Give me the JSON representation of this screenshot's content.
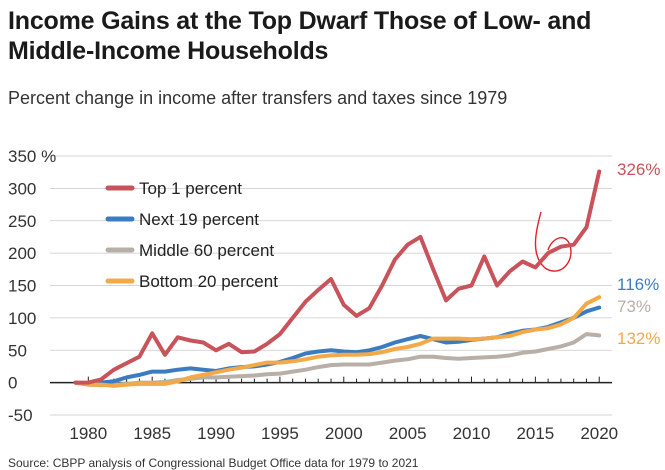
{
  "title": "Income Gains at the Top Dwarf Those of Low- and Middle-Income Households",
  "subtitle": "Percent change in income after transfers and taxes since 1979",
  "source": "Source: CBPP analysis of Congressional Budget Office data for 1979 to 2021",
  "chart_data": {
    "type": "line",
    "xlim": [
      1977,
      2021
    ],
    "ylim": [
      -50,
      350
    ],
    "yticks": [
      -50,
      0,
      50,
      100,
      150,
      200,
      250,
      300,
      350
    ],
    "ytick_labels": [
      "-50",
      "0",
      "50",
      "100",
      "150",
      "200",
      "250",
      "300",
      "350 %"
    ],
    "xticks": [
      1980,
      1985,
      1990,
      1995,
      2000,
      2005,
      2010,
      2015,
      2020
    ],
    "xtick_labels": [
      "1980",
      "1985",
      "1990",
      "1995",
      "2000",
      "2005",
      "2010",
      "2015",
      "2020"
    ],
    "grid": true,
    "legend_position": "upper-left",
    "series": [
      {
        "name": "Top 1 percent",
        "color": "#c8535a",
        "end_label": "326%",
        "x": [
          1979,
          1980,
          1981,
          1982,
          1983,
          1984,
          1985,
          1986,
          1987,
          1988,
          1989,
          1990,
          1991,
          1992,
          1993,
          1994,
          1995,
          1996,
          1997,
          1998,
          1999,
          2000,
          2001,
          2002,
          2003,
          2004,
          2005,
          2006,
          2007,
          2008,
          2009,
          2010,
          2011,
          2012,
          2013,
          2014,
          2015,
          2016,
          2017,
          2018,
          2019,
          2020
        ],
        "y": [
          0,
          0,
          5,
          20,
          30,
          40,
          76,
          43,
          70,
          65,
          62,
          50,
          60,
          47,
          48,
          60,
          75,
          100,
          125,
          143,
          160,
          120,
          103,
          115,
          150,
          190,
          213,
          225,
          175,
          127,
          145,
          150,
          195,
          150,
          172,
          187,
          178,
          200,
          210,
          213,
          240,
          326
        ]
      },
      {
        "name": "Next 19 percent",
        "color": "#3b7cc0",
        "end_label": "116%",
        "x": [
          1979,
          1980,
          1981,
          1982,
          1983,
          1984,
          1985,
          1986,
          1987,
          1988,
          1989,
          1990,
          1991,
          1992,
          1993,
          1994,
          1995,
          1996,
          1997,
          1998,
          1999,
          2000,
          2001,
          2002,
          2003,
          2004,
          2005,
          2006,
          2007,
          2008,
          2009,
          2010,
          2011,
          2012,
          2013,
          2014,
          2015,
          2016,
          2017,
          2018,
          2019,
          2020
        ],
        "y": [
          0,
          -2,
          0,
          2,
          8,
          12,
          17,
          17,
          20,
          22,
          20,
          18,
          22,
          24,
          25,
          28,
          32,
          38,
          45,
          48,
          50,
          48,
          47,
          50,
          55,
          62,
          67,
          72,
          67,
          62,
          63,
          66,
          68,
          70,
          76,
          80,
          82,
          86,
          93,
          100,
          110,
          116
        ]
      },
      {
        "name": "Middle 60 percent",
        "color": "#b8b0a8",
        "end_label": "73%",
        "x": [
          1979,
          1980,
          1981,
          1982,
          1983,
          1984,
          1985,
          1986,
          1987,
          1988,
          1989,
          1990,
          1991,
          1992,
          1993,
          1994,
          1995,
          1996,
          1997,
          1998,
          1999,
          2000,
          2001,
          2002,
          2003,
          2004,
          2005,
          2006,
          2007,
          2008,
          2009,
          2010,
          2011,
          2012,
          2013,
          2014,
          2015,
          2016,
          2017,
          2018,
          2019,
          2020
        ],
        "y": [
          0,
          -3,
          -4,
          -3,
          -2,
          0,
          0,
          1,
          4,
          6,
          8,
          8,
          9,
          10,
          11,
          13,
          14,
          17,
          20,
          24,
          27,
          28,
          28,
          28,
          31,
          34,
          36,
          40,
          40,
          38,
          37,
          38,
          39,
          40,
          42,
          46,
          48,
          52,
          56,
          62,
          75,
          73
        ]
      },
      {
        "name": "Bottom 20 percent",
        "color": "#f3a948",
        "end_label": "132%",
        "x": [
          1979,
          1980,
          1981,
          1982,
          1983,
          1984,
          1985,
          1986,
          1987,
          1988,
          1989,
          1990,
          1991,
          1992,
          1993,
          1994,
          1995,
          1996,
          1997,
          1998,
          1999,
          2000,
          2001,
          2002,
          2003,
          2004,
          2005,
          2006,
          2007,
          2008,
          2009,
          2010,
          2011,
          2012,
          2013,
          2014,
          2015,
          2016,
          2017,
          2018,
          2019,
          2020
        ],
        "y": [
          0,
          -3,
          -3,
          -5,
          -3,
          -2,
          -2,
          -2,
          2,
          8,
          12,
          16,
          20,
          23,
          27,
          31,
          31,
          33,
          36,
          40,
          42,
          43,
          43,
          44,
          47,
          52,
          55,
          60,
          68,
          68,
          68,
          67,
          68,
          70,
          72,
          78,
          82,
          84,
          90,
          100,
          122,
          132
        ]
      }
    ]
  }
}
